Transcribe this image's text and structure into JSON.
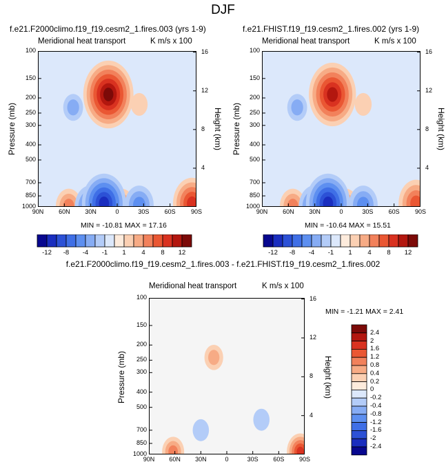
{
  "figure": {
    "title": "DJF"
  },
  "panels": [
    {
      "title": "f.e21.F2000climo.f19_f19.cesm2_1.fires.003 (yrs 1-9)",
      "left_label": "Meridional heat transport",
      "right_label": "K m/s x 100",
      "min_text": "MIN = -10.81   MAX =  17.16"
    },
    {
      "title": "f.e21.FHIST.f19_f19.cesm2_1.fires.002 (yrs 1-9)",
      "left_label": "Meridional heat transport",
      "right_label": "K m/s x 100",
      "min_text": "MIN = -10.64   MAX =  15.51"
    },
    {
      "title": "f.e21.F2000climo.f19_f19.cesm2_1.fires.003 - f.e21.FHIST.f19_f19.cesm2_1.fires.002",
      "left_label": "Meridional heat transport",
      "right_label": "K m/s x 100",
      "min_text": "MIN =  -1.21   MAX =   2.41"
    }
  ],
  "axes": {
    "ylabel": "Pressure (mb)",
    "y2label": "Height (km)",
    "x_ticks": [
      "90N",
      "60N",
      "30N",
      "0",
      "30S",
      "60S",
      "90S"
    ],
    "y_ticks": [
      "100",
      "150",
      "200",
      "250",
      "300",
      "400",
      "500",
      "700",
      "850",
      "1000"
    ],
    "y2_ticks": [
      "16",
      "12",
      "8",
      "4"
    ]
  },
  "colorbar_top": {
    "labels": [
      "-12",
      "-8",
      "-4",
      "-1",
      "1",
      "4",
      "8",
      "12"
    ],
    "colors": [
      "#08088f",
      "#1a2ebf",
      "#2c51d6",
      "#3f6fe6",
      "#5d8ff0",
      "#86acf4",
      "#b3ccf8",
      "#dce8fb",
      "#fdebdc",
      "#fbd0b3",
      "#f7ab85",
      "#f2815b",
      "#ea5733",
      "#d93220",
      "#b3170f",
      "#7c0a08"
    ]
  },
  "colorbar_diff": {
    "labels": [
      "2.4",
      "2",
      "1.6",
      "1.2",
      "0.8",
      "0.4",
      "0.2",
      "0",
      "-0.2",
      "-0.4",
      "-0.8",
      "-1.2",
      "-1.6",
      "-2",
      "-2.4"
    ],
    "colors": [
      "#7c0a08",
      "#b3170f",
      "#d93220",
      "#ea5733",
      "#f2815b",
      "#f7ab85",
      "#fbd0b3",
      "#fdebdc",
      "#dce8fb",
      "#b3ccf8",
      "#86acf4",
      "#5d8ff0",
      "#3f6fe6",
      "#2c51d6",
      "#1a2ebf",
      "#08088f"
    ]
  },
  "chart_data": [
    {
      "type": "heatmap",
      "title": "f.e21.F2000climo.f19_f19.cesm2_1.fires.003 (yrs 1-9)",
      "subtitle": "Meridional heat transport",
      "units": "K m/s x 100",
      "xlabel": "",
      "ylabel": "Pressure (mb)",
      "y2label": "Height (km)",
      "x_ticks": [
        "90N",
        "60N",
        "30N",
        "0",
        "30S",
        "60S",
        "90S"
      ],
      "y_ticks": [
        100,
        150,
        200,
        250,
        300,
        400,
        500,
        700,
        850,
        1000
      ],
      "ylim": [
        1000,
        100
      ],
      "y_scale": "log",
      "y2_ticks": [
        16,
        12,
        8,
        4
      ],
      "min": -10.81,
      "max": 17.16,
      "levels": [
        -12,
        -10,
        -8,
        -6,
        -4,
        -2,
        -1,
        0,
        1,
        2,
        4,
        6,
        8,
        10,
        12
      ],
      "features": [
        {
          "lat": 10,
          "p": 190,
          "value": 12
        },
        {
          "lat": 50,
          "p": 230,
          "value": -2
        },
        {
          "lat": -25,
          "p": 220,
          "value": 1
        },
        {
          "lat": 15,
          "p": 950,
          "value": -10
        },
        {
          "lat": -25,
          "p": 975,
          "value": -5
        },
        {
          "lat": 30,
          "p": 1000,
          "value": -6
        },
        {
          "lat": 55,
          "p": 990,
          "value": 4
        },
        {
          "lat": -5,
          "p": 990,
          "value": 4
        },
        {
          "lat": -85,
          "p": 950,
          "value": 8
        }
      ]
    },
    {
      "type": "heatmap",
      "title": "f.e21.FHIST.f19_f19.cesm2_1.fires.002 (yrs 1-9)",
      "subtitle": "Meridional heat transport",
      "units": "K m/s x 100",
      "xlabel": "",
      "ylabel": "Pressure (mb)",
      "y2label": "Height (km)",
      "x_ticks": [
        "90N",
        "60N",
        "30N",
        "0",
        "30S",
        "60S",
        "90S"
      ],
      "y_ticks": [
        100,
        150,
        200,
        250,
        300,
        400,
        500,
        700,
        850,
        1000
      ],
      "ylim": [
        1000,
        100
      ],
      "y_scale": "log",
      "y2_ticks": [
        16,
        12,
        8,
        4
      ],
      "min": -10.64,
      "max": 15.51,
      "levels": [
        -12,
        -10,
        -8,
        -6,
        -4,
        -2,
        -1,
        0,
        1,
        2,
        4,
        6,
        8,
        10,
        12
      ],
      "features": [
        {
          "lat": 10,
          "p": 190,
          "value": 11
        },
        {
          "lat": 50,
          "p": 230,
          "value": -2
        },
        {
          "lat": -25,
          "p": 220,
          "value": 1
        },
        {
          "lat": 15,
          "p": 950,
          "value": -10
        },
        {
          "lat": -25,
          "p": 975,
          "value": -5
        },
        {
          "lat": 30,
          "p": 1000,
          "value": -6
        },
        {
          "lat": 55,
          "p": 990,
          "value": 4
        },
        {
          "lat": -5,
          "p": 990,
          "value": 4
        },
        {
          "lat": -85,
          "p": 950,
          "value": 7
        }
      ]
    },
    {
      "type": "heatmap",
      "title": "f.e21.F2000climo.f19_f19.cesm2_1.fires.003 - f.e21.FHIST.f19_f19.cesm2_1.fires.002",
      "subtitle": "Meridional heat transport",
      "units": "K m/s x 100",
      "xlabel": "",
      "ylabel": "Pressure (mb)",
      "y2label": "Height (km)",
      "x_ticks": [
        "90N",
        "60N",
        "30N",
        "0",
        "30S",
        "60S",
        "90S"
      ],
      "y_ticks": [
        100,
        150,
        200,
        250,
        300,
        400,
        500,
        700,
        850,
        1000
      ],
      "ylim": [
        1000,
        100
      ],
      "y_scale": "log",
      "y2_ticks": [
        16,
        12,
        8,
        4
      ],
      "min": -1.21,
      "max": 2.41,
      "levels": [
        -2.4,
        -2,
        -1.6,
        -1.2,
        -0.8,
        -0.4,
        -0.2,
        0,
        0.2,
        0.4,
        0.8,
        1.2,
        1.6,
        2,
        2.4
      ],
      "features": [
        {
          "lat": 15,
          "p": 240,
          "value": 0.6
        },
        {
          "lat": 62,
          "p": 960,
          "value": 1.0
        },
        {
          "lat": -85,
          "p": 960,
          "value": 1.6
        },
        {
          "lat": 30,
          "p": 700,
          "value": -0.3
        },
        {
          "lat": -40,
          "p": 600,
          "value": -0.3
        }
      ]
    }
  ]
}
